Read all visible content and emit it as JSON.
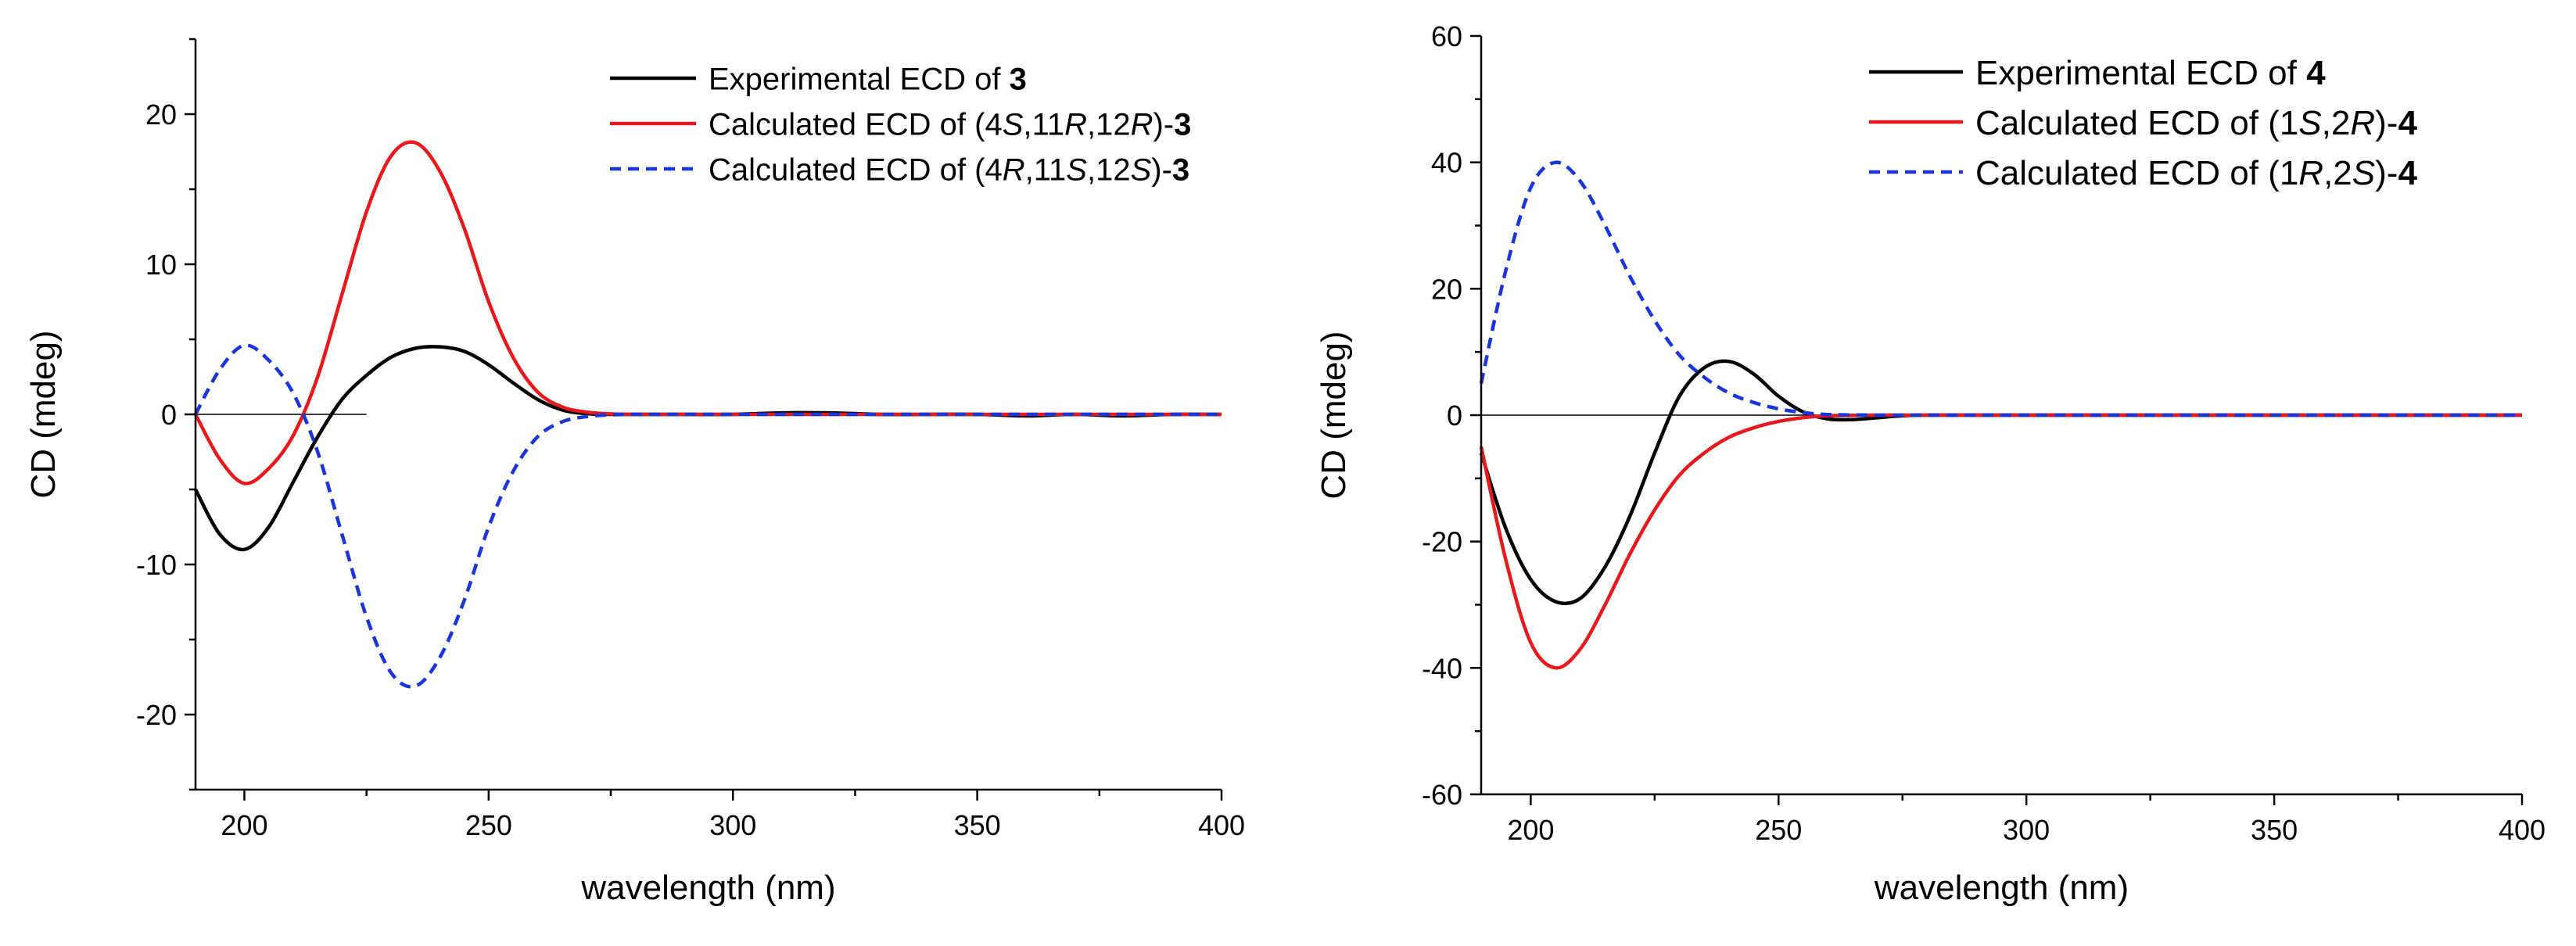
{
  "chart_data": [
    {
      "type": "line",
      "xlabel": "wavelength (nm)",
      "ylabel": "CD (mdeg)",
      "xlim": [
        190,
        400
      ],
      "ylim": [
        -25,
        25
      ],
      "xticks": [
        200,
        250,
        300,
        350,
        400
      ],
      "yticks": [
        -20,
        -10,
        0,
        10,
        20
      ],
      "legend_position": "top-right",
      "series": [
        {
          "name": "Experimental ECD of 3",
          "legend_parts": [
            {
              "text": "Experimental ECD of ",
              "style": "normal"
            },
            {
              "text": "3",
              "style": "bold"
            }
          ],
          "color": "#000000",
          "dash": "solid",
          "x": [
            190,
            195,
            200,
            205,
            210,
            215,
            220,
            225,
            230,
            235,
            240,
            245,
            250,
            255,
            260,
            265,
            270,
            275,
            280,
            290,
            300,
            310,
            320,
            330,
            340,
            350,
            360,
            370,
            380,
            390,
            400
          ],
          "y": [
            -5,
            -8,
            -9,
            -7.5,
            -4.5,
            -1.5,
            1,
            2.6,
            3.8,
            4.4,
            4.5,
            4.2,
            3.3,
            2.1,
            1,
            0.3,
            0.05,
            0,
            0,
            0,
            0,
            0.1,
            0.1,
            0,
            0,
            0,
            -0.1,
            0,
            -0.1,
            0,
            0
          ]
        },
        {
          "name": "Calculated ECD of (4S,11R,12R)-3",
          "legend_parts": [
            {
              "text": "Calculated ECD of (4",
              "style": "normal"
            },
            {
              "text": "S",
              "style": "italic"
            },
            {
              "text": ",11",
              "style": "normal"
            },
            {
              "text": "R",
              "style": "italic"
            },
            {
              "text": ",12",
              "style": "normal"
            },
            {
              "text": "R",
              "style": "italic"
            },
            {
              "text": ")-",
              "style": "normal"
            },
            {
              "text": "3",
              "style": "bold"
            }
          ],
          "color": "#e8191c",
          "dash": "solid",
          "x": [
            190,
            195,
            200,
            205,
            210,
            215,
            220,
            225,
            230,
            235,
            240,
            245,
            250,
            255,
            260,
            265,
            270,
            275,
            280,
            290,
            300,
            350,
            400
          ],
          "y": [
            0,
            -3,
            -4.6,
            -3.6,
            -1.4,
            2.5,
            8,
            13.5,
            17.2,
            18.1,
            16.2,
            12.4,
            7.5,
            3.8,
            1.5,
            0.5,
            0.15,
            0.03,
            0,
            0,
            0,
            0,
            0
          ]
        },
        {
          "name": "Calculated ECD of (4R,11S,12S)-3",
          "legend_parts": [
            {
              "text": "Calculated ECD of (4",
              "style": "normal"
            },
            {
              "text": "R",
              "style": "italic"
            },
            {
              "text": ",11",
              "style": "normal"
            },
            {
              "text": "S",
              "style": "italic"
            },
            {
              "text": ",12",
              "style": "normal"
            },
            {
              "text": "S",
              "style": "italic"
            },
            {
              "text": ")-",
              "style": "normal"
            },
            {
              "text": "3",
              "style": "bold"
            }
          ],
          "color": "#1a35d9",
          "dash": "dashed",
          "x": [
            190,
            195,
            200,
            205,
            210,
            215,
            220,
            225,
            230,
            235,
            240,
            245,
            250,
            255,
            260,
            265,
            270,
            275,
            280,
            290,
            300,
            350,
            400
          ],
          "y": [
            0,
            3,
            4.6,
            3.6,
            1.4,
            -2.5,
            -8,
            -13.5,
            -17.2,
            -18.1,
            -16.2,
            -12.4,
            -7.5,
            -3.8,
            -1.5,
            -0.5,
            -0.15,
            -0.03,
            0,
            0,
            0,
            0,
            0
          ]
        }
      ]
    },
    {
      "type": "line",
      "xlabel": "wavelength (nm)",
      "ylabel": "CD (mdeg)",
      "xlim": [
        190,
        400
      ],
      "ylim": [
        -60,
        60
      ],
      "xticks": [
        200,
        250,
        300,
        350,
        400
      ],
      "yticks": [
        -60,
        -40,
        -20,
        0,
        20,
        40,
        60
      ],
      "legend_position": "top-right",
      "series": [
        {
          "name": "Experimental ECD of 4",
          "legend_parts": [
            {
              "text": "Experimental ECD of ",
              "style": "normal"
            },
            {
              "text": "4",
              "style": "bold"
            }
          ],
          "color": "#000000",
          "dash": "solid",
          "x": [
            190,
            195,
            200,
            205,
            210,
            215,
            220,
            225,
            230,
            235,
            240,
            245,
            250,
            255,
            260,
            265,
            270,
            275,
            280,
            300,
            350,
            400
          ],
          "y": [
            -6,
            -18,
            -26,
            -29.5,
            -29,
            -24,
            -16,
            -6,
            3,
            7.5,
            8.5,
            6.5,
            3,
            0.5,
            -0.6,
            -0.7,
            -0.4,
            -0.1,
            0,
            0,
            0,
            0
          ]
        },
        {
          "name": "Calculated ECD of (1S,2R)-4",
          "legend_parts": [
            {
              "text": "Calculated ECD of (1",
              "style": "normal"
            },
            {
              "text": "S",
              "style": "italic"
            },
            {
              "text": ",2",
              "style": "normal"
            },
            {
              "text": "R",
              "style": "italic"
            },
            {
              "text": ")-",
              "style": "normal"
            },
            {
              "text": "4",
              "style": "bold"
            }
          ],
          "color": "#e8191c",
          "dash": "solid",
          "x": [
            190,
            195,
            200,
            205,
            210,
            215,
            220,
            225,
            230,
            235,
            240,
            245,
            250,
            255,
            260,
            270,
            280,
            300,
            350,
            400
          ],
          "y": [
            -5,
            -23,
            -36,
            -40,
            -37,
            -30,
            -22,
            -15,
            -9.5,
            -6,
            -3.5,
            -2,
            -1,
            -0.4,
            -0.1,
            0,
            0,
            0,
            0,
            0
          ]
        },
        {
          "name": "Calculated ECD of (1R,2S)-4",
          "legend_parts": [
            {
              "text": "Calculated ECD of (1",
              "style": "normal"
            },
            {
              "text": "R",
              "style": "italic"
            },
            {
              "text": ",2",
              "style": "normal"
            },
            {
              "text": "S",
              "style": "italic"
            },
            {
              "text": ")-",
              "style": "normal"
            },
            {
              "text": "4",
              "style": "bold"
            }
          ],
          "color": "#1a35d9",
          "dash": "dashed",
          "x": [
            190,
            195,
            200,
            205,
            210,
            215,
            220,
            225,
            230,
            235,
            240,
            245,
            250,
            255,
            260,
            270,
            280,
            300,
            350,
            400
          ],
          "y": [
            5,
            23,
            36,
            40,
            37,
            30,
            22,
            15,
            9.5,
            6,
            3.5,
            2,
            1,
            0.4,
            0.1,
            0,
            0,
            0,
            0,
            0
          ]
        }
      ]
    }
  ]
}
